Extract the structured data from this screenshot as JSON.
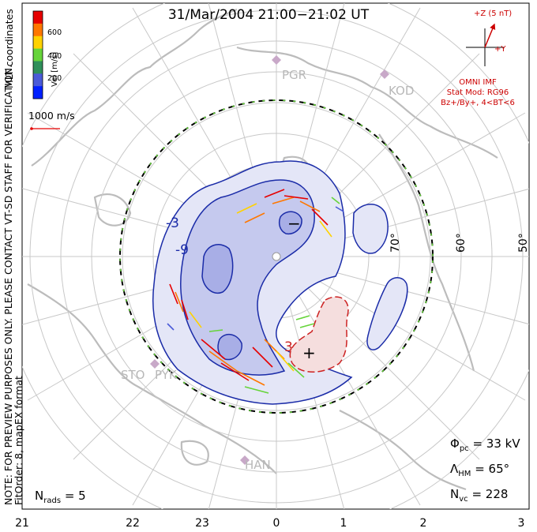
{
  "title": "31/Mar/2004 21:00−21:02 UT",
  "side_note": {
    "line1": "NOTE: FOR PREVIEW PURPOSES ONLY. PLEASE CONTACT VT-SD STAFF FOR VERIFICATION.",
    "line2": "FitOrder: 8, mapEX format"
  },
  "coordinates_label": "MLT coordinates",
  "velocity_scale": {
    "label": "Vel [m/s]",
    "ticks": [
      "600",
      "400",
      "200"
    ],
    "colors": [
      "#e60000",
      "#ff7700",
      "#ffd200",
      "#66d43a",
      "#2f8f5a",
      "#4a5ad8",
      "#0020ff"
    ],
    "reference_vector": "1000 m/s"
  },
  "stations": [
    "PGR",
    "KOD",
    "STO",
    "PYK",
    "HAN"
  ],
  "imf": {
    "label": "+Z (5 nT)",
    "y_label": "+Y",
    "source": "OMNI IMF",
    "model": "Stat Mod: RG96",
    "condition": "Bz+/By+, 4<BT<6",
    "arrow_color": "#cc0000"
  },
  "stats": {
    "phi_label": "Φ",
    "phi_sub": "pc",
    "phi_value": "= 33 kV",
    "lambda_label": "Λ",
    "lambda_sub": "HM",
    "lambda_value": "= 65°",
    "nvc_label": "N",
    "nvc_sub": "vc",
    "nvc_value": "= 228",
    "nrads_label": "N",
    "nrads_sub": "rads",
    "nrads_value": "= 5"
  },
  "chart_data": {
    "type": "polar-convection-map",
    "title": "31/Mar/2004 21:00−21:02 UT",
    "mlt_ticks": [
      "21",
      "22",
      "23",
      "0",
      "1",
      "2",
      "3"
    ],
    "latitude_ticks": [
      "70°",
      "60°",
      "50°"
    ],
    "lower_latitude_boundary_deg": 65,
    "contour_labels": [
      "-9",
      "-3",
      "3"
    ],
    "potential_extrema_markers": [
      "−",
      "+"
    ],
    "negative_cell_color": "#3c46c8",
    "positive_cell_color": "#cc2222"
  }
}
